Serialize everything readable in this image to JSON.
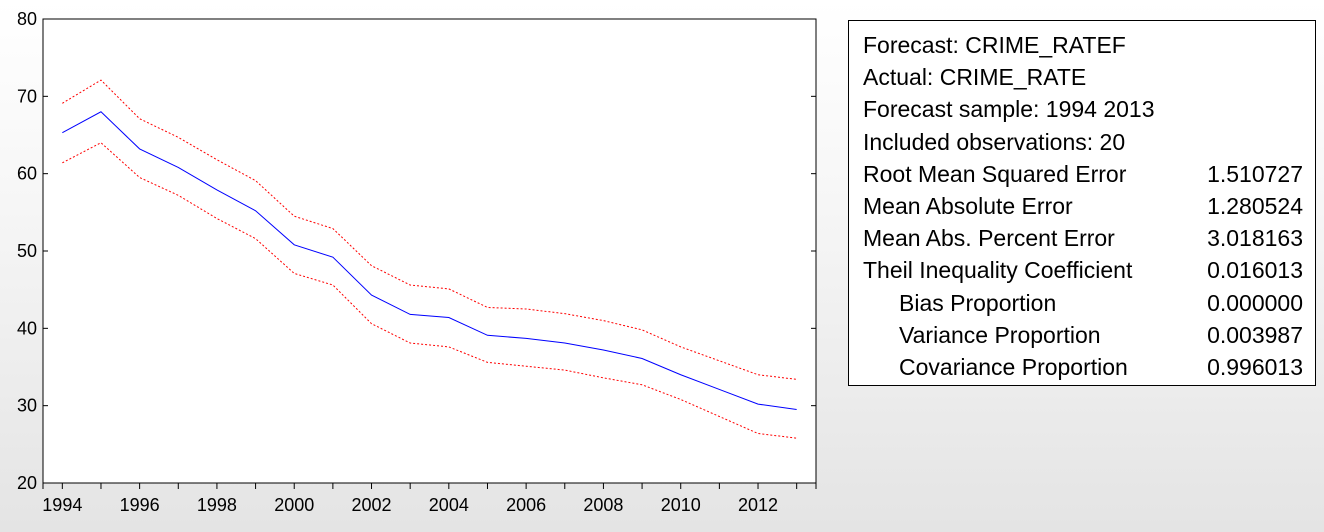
{
  "chart_data": {
    "type": "line",
    "x": [
      1994,
      1995,
      1996,
      1997,
      1998,
      1999,
      2000,
      2001,
      2002,
      2003,
      2004,
      2005,
      2006,
      2007,
      2008,
      2009,
      2010,
      2011,
      2012,
      2013
    ],
    "x_ticks": [
      "1994",
      "1996",
      "1998",
      "2000",
      "2002",
      "2004",
      "2006",
      "2008",
      "2010",
      "2012"
    ],
    "y_ticks": [
      "20",
      "30",
      "40",
      "50",
      "60",
      "70",
      "80"
    ],
    "ylim": [
      20,
      80
    ],
    "series": [
      {
        "color": "#0000ff",
        "style": "solid",
        "values": [
          65.3,
          68.0,
          63.2,
          60.8,
          57.9,
          55.2,
          50.8,
          49.2,
          44.3,
          41.8,
          41.4,
          39.1,
          38.7,
          38.1,
          37.2,
          36.1,
          34.0,
          32.1,
          30.2,
          29.5
        ]
      },
      {
        "color": "#ff0000",
        "style": "dotted",
        "values": [
          69.1,
          72.1,
          67.1,
          64.7,
          61.8,
          59.1,
          54.5,
          52.9,
          48.1,
          45.6,
          45.1,
          42.7,
          42.5,
          41.9,
          41.0,
          39.8,
          37.6,
          35.8,
          34.0,
          33.4
        ]
      },
      {
        "color": "#ff0000",
        "style": "dotted",
        "values": [
          61.4,
          64.0,
          59.5,
          57.2,
          54.2,
          51.6,
          47.1,
          45.6,
          40.6,
          38.1,
          37.6,
          35.6,
          35.1,
          34.6,
          33.6,
          32.7,
          30.8,
          28.6,
          26.4,
          25.8
        ]
      }
    ]
  },
  "stats": {
    "forecast": "Forecast: CRIME_RATEF",
    "actual": "Actual: CRIME_RATE",
    "sample": "Forecast sample: 1994 2013",
    "observations": "Included observations: 20",
    "rows": [
      {
        "label": "Root Mean Squared Error",
        "value": "1.510727"
      },
      {
        "label": "Mean Absolute Error",
        "value": "1.280524"
      },
      {
        "label": "Mean Abs. Percent Error",
        "value": "3.018163"
      },
      {
        "label": "Theil Inequality Coefficient",
        "value": "0.016013"
      },
      {
        "label": "Bias Proportion",
        "value": "0.000000"
      },
      {
        "label": "Variance Proportion",
        "value": "0.003987"
      },
      {
        "label": "Covariance Proportion",
        "value": "0.996013"
      }
    ]
  }
}
